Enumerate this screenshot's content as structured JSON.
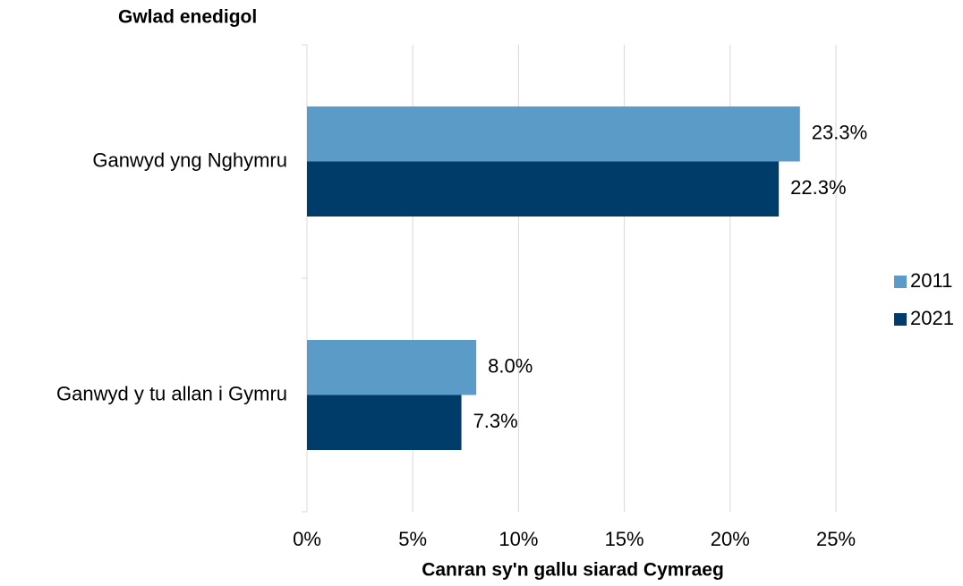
{
  "chart_data": {
    "type": "bar",
    "orientation": "horizontal",
    "y_axis_label": "Gwlad enedigol",
    "x_axis_label": "Canran sy'n gallu siarad Cymraeg",
    "categories": [
      "Ganwyd yng Nghymru",
      "Ganwyd y tu allan i Gymru"
    ],
    "series": [
      {
        "name": "2011",
        "color": "#5b9bc8",
        "values": [
          23.3,
          8.0
        ],
        "value_labels": [
          "23.3%",
          "8.0%"
        ]
      },
      {
        "name": "2021",
        "color": "#003c6a",
        "values": [
          22.3,
          7.3
        ],
        "value_labels": [
          "22.3%",
          "7.3%"
        ]
      }
    ],
    "xlim": [
      0,
      25
    ],
    "xticks": [
      {
        "value": 0,
        "label": "0%"
      },
      {
        "value": 5,
        "label": "5%"
      },
      {
        "value": 10,
        "label": "10%"
      },
      {
        "value": 15,
        "label": "15%"
      },
      {
        "value": 20,
        "label": "20%"
      },
      {
        "value": 25,
        "label": "25%"
      }
    ],
    "grid": true,
    "legend": "right"
  }
}
